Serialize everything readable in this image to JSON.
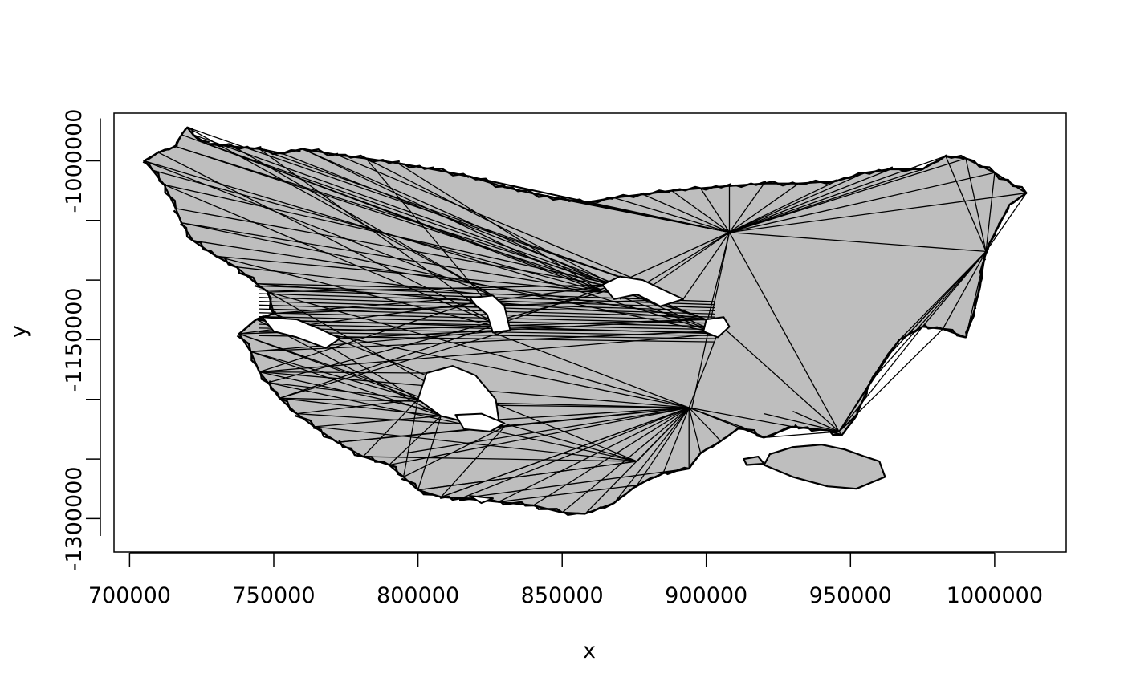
{
  "chart_data": {
    "type": "polygon-triangulation",
    "title": "",
    "xlabel": "x",
    "ylabel": "y",
    "xlim": [
      694600,
      1024800
    ],
    "ylim": [
      -1328000,
      -960000
    ],
    "x_ticks": [
      700000,
      750000,
      800000,
      850000,
      900000,
      950000,
      1000000
    ],
    "x_tick_labels": [
      "700000",
      "750000",
      "800000",
      "850000",
      "900000",
      "950000",
      "1000000"
    ],
    "y_ticks": [
      -1000000,
      -1050000,
      -1100000,
      -1150000,
      -1200000,
      -1250000,
      -1300000
    ],
    "y_tick_labels": [
      "-1000000",
      "",
      "",
      "-1150000",
      "",
      "",
      "-1300000"
    ],
    "fill_color": "#bebebe",
    "edge_color": "#000000",
    "outline": [
      [
        710000,
        -993000
      ],
      [
        716000,
        -988000
      ],
      [
        718000,
        -978000
      ],
      [
        720000,
        -972000
      ],
      [
        722000,
        -978000
      ],
      [
        727000,
        -986000
      ],
      [
        736000,
        -988000
      ],
      [
        745000,
        -990000
      ],
      [
        753000,
        -994000
      ],
      [
        760000,
        -990000
      ],
      [
        772000,
        -995000
      ],
      [
        782000,
        -998000
      ],
      [
        793000,
        -1002000
      ],
      [
        805000,
        -1007000
      ],
      [
        818000,
        -1013000
      ],
      [
        830000,
        -1022000
      ],
      [
        845000,
        -1030000
      ],
      [
        858000,
        -1035000
      ],
      [
        868000,
        -1031000
      ],
      [
        878000,
        -1028000
      ],
      [
        888000,
        -1025000
      ],
      [
        898000,
        -1023000
      ],
      [
        908000,
        -1021000
      ],
      [
        920000,
        -1019000
      ],
      [
        932000,
        -1019000
      ],
      [
        945000,
        -1017000
      ],
      [
        955000,
        -1010000
      ],
      [
        964000,
        -1007000
      ],
      [
        975000,
        -1007000
      ],
      [
        983000,
        -996000
      ],
      [
        990000,
        -998000
      ],
      [
        1000000,
        -1010000
      ],
      [
        1011000,
        -1027000
      ],
      [
        1005000,
        -1037000
      ],
      [
        1002000,
        -1052000
      ],
      [
        998000,
        -1070000
      ],
      [
        996000,
        -1085000
      ],
      [
        995000,
        -1105000
      ],
      [
        993000,
        -1125000
      ],
      [
        990000,
        -1148000
      ],
      [
        982000,
        -1141000
      ],
      [
        975000,
        -1139000
      ],
      [
        967000,
        -1150000
      ],
      [
        962000,
        -1166000
      ],
      [
        957000,
        -1185000
      ],
      [
        952000,
        -1214000
      ],
      [
        947000,
        -1230000
      ],
      [
        942000,
        -1226000
      ],
      [
        930000,
        -1223000
      ],
      [
        920000,
        -1232000
      ],
      [
        912000,
        -1223000
      ],
      [
        905000,
        -1235000
      ],
      [
        898000,
        -1245000
      ],
      [
        894000,
        -1258000
      ],
      [
        885000,
        -1262000
      ],
      [
        876000,
        -1272000
      ],
      [
        868000,
        -1287000
      ],
      [
        858000,
        -1296000
      ],
      [
        850000,
        -1295000
      ],
      [
        840000,
        -1289000
      ],
      [
        828000,
        -1286000
      ],
      [
        815000,
        -1283000
      ],
      [
        808000,
        -1282000
      ],
      [
        800000,
        -1276000
      ],
      [
        795000,
        -1265000
      ],
      [
        790000,
        -1255000
      ],
      [
        781000,
        -1248000
      ],
      [
        772000,
        -1236000
      ],
      [
        764000,
        -1223000
      ],
      [
        758000,
        -1212000
      ],
      [
        752000,
        -1199000
      ],
      [
        748000,
        -1186000
      ],
      [
        745000,
        -1177000
      ],
      [
        742000,
        -1160000
      ],
      [
        738000,
        -1145000
      ],
      [
        744000,
        -1133000
      ],
      [
        750000,
        -1128000
      ],
      [
        748000,
        -1110000
      ],
      [
        744000,
        -1103000
      ],
      [
        737000,
        -1089000
      ],
      [
        730000,
        -1080000
      ],
      [
        722000,
        -1067000
      ],
      [
        718000,
        -1052000
      ],
      [
        716000,
        -1040000
      ],
      [
        712000,
        -1020000
      ],
      [
        708000,
        -1008000
      ],
      [
        705000,
        -1000000
      ]
    ],
    "fan_hubs": [
      {
        "id": "north-central",
        "xy": [
          908000,
          -1060000
        ]
      },
      {
        "id": "east",
        "xy": [
          997000,
          -1076000
        ]
      },
      {
        "id": "south-central",
        "xy": [
          894000,
          -1207000
        ]
      },
      {
        "id": "southeast",
        "xy": [
          946000,
          -1227000
        ]
      }
    ],
    "holes": [
      [
        [
          864000,
          -1104000
        ],
        [
          870000,
          -1097000
        ],
        [
          878000,
          -1100000
        ],
        [
          884000,
          -1107000
        ],
        [
          892000,
          -1116000
        ],
        [
          884000,
          -1122000
        ],
        [
          876000,
          -1112000
        ],
        [
          868000,
          -1116000
        ]
      ],
      [
        [
          818000,
          -1115000
        ],
        [
          826000,
          -1113000
        ],
        [
          830000,
          -1122000
        ],
        [
          832000,
          -1142000
        ],
        [
          826000,
          -1144000
        ],
        [
          824000,
          -1129000
        ],
        [
          820000,
          -1121000
        ]
      ],
      [
        [
          900000,
          -1133000
        ],
        [
          906000,
          -1131000
        ],
        [
          908000,
          -1139000
        ],
        [
          904000,
          -1148000
        ],
        [
          899000,
          -1143000
        ]
      ],
      [
        [
          746000,
          -1131000
        ],
        [
          758000,
          -1133000
        ],
        [
          766000,
          -1141000
        ],
        [
          773000,
          -1149000
        ],
        [
          768000,
          -1157000
        ],
        [
          758000,
          -1148000
        ],
        [
          750000,
          -1143000
        ]
      ],
      [
        [
          803000,
          -1178000
        ],
        [
          812000,
          -1172000
        ],
        [
          820000,
          -1180000
        ],
        [
          827000,
          -1200000
        ],
        [
          828000,
          -1217000
        ],
        [
          820000,
          -1221000
        ],
        [
          808000,
          -1214000
        ],
        [
          800000,
          -1200000
        ]
      ],
      [
        [
          813000,
          -1213000
        ],
        [
          822000,
          -1212000
        ],
        [
          830000,
          -1220000
        ],
        [
          825000,
          -1227000
        ],
        [
          816000,
          -1225000
        ]
      ],
      [
        [
          818000,
          -1281000
        ],
        [
          826000,
          -1283000
        ],
        [
          822000,
          -1287000
        ]
      ]
    ],
    "islands": [
      [
        [
          922000,
          -1246000
        ],
        [
          930000,
          -1240000
        ],
        [
          940000,
          -1238000
        ],
        [
          948000,
          -1242000
        ],
        [
          955000,
          -1248000
        ],
        [
          960000,
          -1252000
        ],
        [
          962000,
          -1265000
        ],
        [
          952000,
          -1275000
        ],
        [
          942000,
          -1273000
        ],
        [
          930000,
          -1265000
        ],
        [
          920000,
          -1255000
        ]
      ],
      [
        [
          913000,
          -1250000
        ],
        [
          918000,
          -1248000
        ],
        [
          920000,
          -1254000
        ],
        [
          914000,
          -1255000
        ]
      ]
    ]
  }
}
